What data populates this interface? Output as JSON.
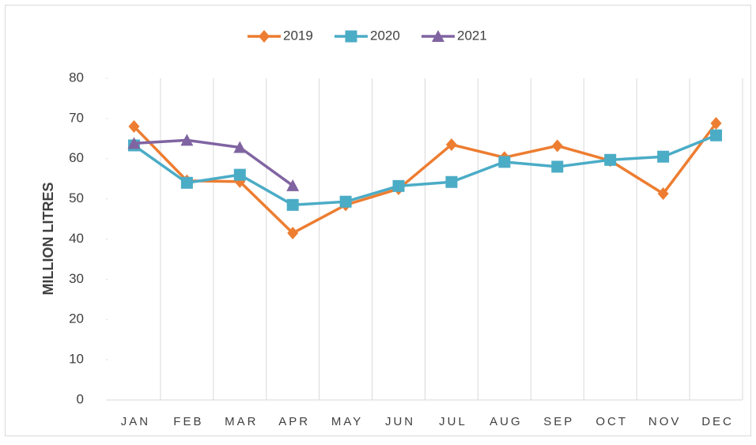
{
  "chart_data": {
    "type": "line",
    "y_label": "MILLION LITRES",
    "categories": [
      "JAN",
      "FEB",
      "MAR",
      "APR",
      "MAY",
      "JUN",
      "JUL",
      "AUG",
      "SEP",
      "OCT",
      "NOV",
      "DEC"
    ],
    "series": [
      {
        "name": "2019",
        "color": "#ED7D31",
        "marker": "diamond",
        "values": [
          68,
          54.5,
          54.3,
          41.5,
          48.5,
          52.5,
          63.5,
          60.3,
          63.2,
          59.5,
          51.3,
          68.8
        ]
      },
      {
        "name": "2020",
        "color": "#4BACC6",
        "marker": "square",
        "values": [
          63.3,
          54,
          56,
          48.5,
          49.3,
          53.2,
          54.2,
          59.2,
          58,
          59.7,
          60.5,
          65.8
        ]
      },
      {
        "name": "2021",
        "color": "#8064A2",
        "marker": "triangle",
        "values": [
          63.8,
          64.6,
          62.8,
          53.3,
          null,
          null,
          null,
          null,
          null,
          null,
          null,
          null
        ]
      }
    ],
    "ylim": [
      0,
      80
    ],
    "yticks": [
      0,
      10,
      20,
      30,
      40,
      50,
      60,
      70,
      80
    ],
    "grid": "vertical",
    "legend": "top"
  }
}
